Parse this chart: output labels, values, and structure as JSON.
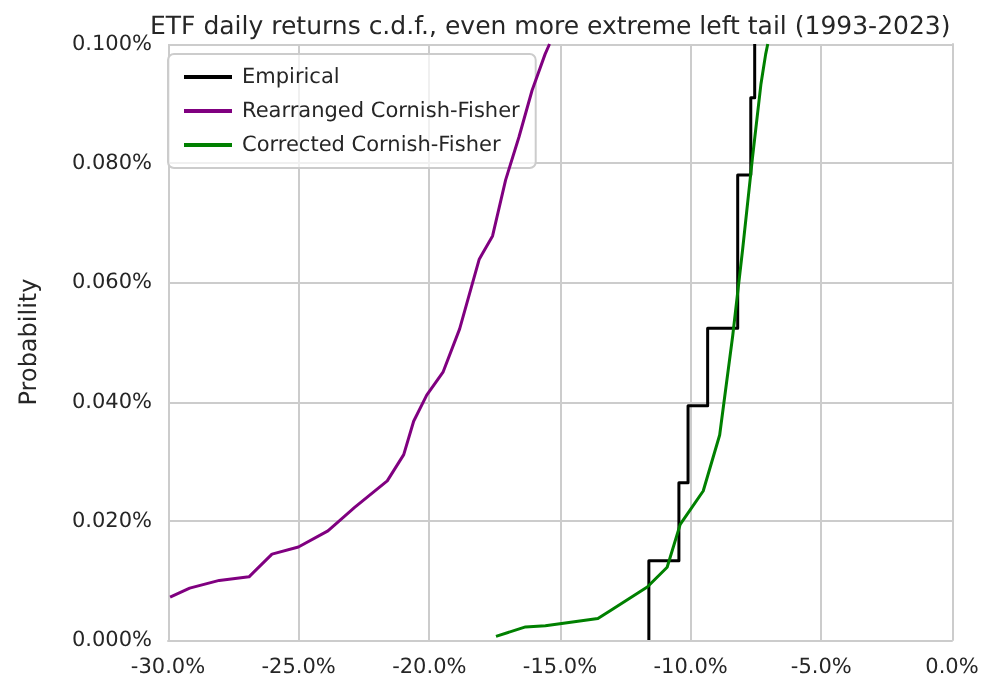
{
  "chart_data": {
    "type": "line",
    "title": "ETF daily returns c.d.f., even more extreme left tail (1993-2023)",
    "ylabel": "Probability",
    "xlim": [
      -30,
      0
    ],
    "xticks": [
      {
        "value": -30,
        "label": "-30.0%"
      },
      {
        "value": -25,
        "label": "-25.0%"
      },
      {
        "value": -20,
        "label": "-20.0%"
      },
      {
        "value": -15,
        "label": "-15.0%"
      },
      {
        "value": -10,
        "label": "-10.0%"
      },
      {
        "value": -5,
        "label": "-5.0%"
      },
      {
        "value": 0,
        "label": "0.0%"
      }
    ],
    "ylim": [
      0,
      0.1
    ],
    "yticks": [
      {
        "value": 0,
        "label": "0.000%"
      },
      {
        "value": 0.02,
        "label": "0.020%"
      },
      {
        "value": 0.04,
        "label": "0.040%"
      },
      {
        "value": 0.06,
        "label": "0.060%"
      },
      {
        "value": 0.08,
        "label": "0.080%"
      },
      {
        "value": 0.1,
        "label": "0.100%"
      }
    ],
    "grid": true,
    "legend": "top left",
    "marker": "none",
    "line_style": "solid",
    "series": [
      {
        "name": "Empirical",
        "type": "step",
        "color": "#000000",
        "x": [
          -11.6,
          -11.6,
          -10.45,
          -10.1,
          -9.35,
          -8.2,
          -7.7,
          -7.55
        ],
        "values": [
          0,
          0.0133,
          0.0264,
          0.0393,
          0.0523,
          0.078,
          0.091,
          0.1
        ]
      },
      {
        "name": "Rearranged Cornish-Fisher",
        "color": "#800080",
        "x": [
          -29.92,
          -29.17,
          -28.04,
          -26.9,
          -26.02,
          -25.01,
          -23.88,
          -22.87,
          -21.61,
          -20.98,
          -20.6,
          -20.1,
          -19.47,
          -18.84,
          -18.09,
          -17.58,
          -17.08,
          -16.57,
          -16.07,
          -15.57,
          -15.4
        ],
        "values": [
          0.0072,
          0.0087,
          0.01,
          0.0106,
          0.0144,
          0.0156,
          0.0183,
          0.0222,
          0.0267,
          0.0311,
          0.0367,
          0.0411,
          0.045,
          0.0522,
          0.0639,
          0.0678,
          0.0772,
          0.0844,
          0.0922,
          0.0983,
          0.1
        ]
      },
      {
        "name": "Corrected Cornish-Fisher",
        "color": "#008000",
        "x": [
          -17.45,
          -16.32,
          -15.56,
          -13.55,
          -13.05,
          -11.66,
          -10.9,
          -10.4,
          -9.52,
          -8.89,
          -8.39,
          -8.01,
          -7.63,
          -7.31,
          -7.13,
          -7.05
        ],
        "values": [
          0.0006,
          0.0022,
          0.0024,
          0.0036,
          0.005,
          0.0089,
          0.0122,
          0.0194,
          0.025,
          0.0344,
          0.0511,
          0.0656,
          0.0811,
          0.0933,
          0.0983,
          0.1
        ]
      }
    ]
  }
}
